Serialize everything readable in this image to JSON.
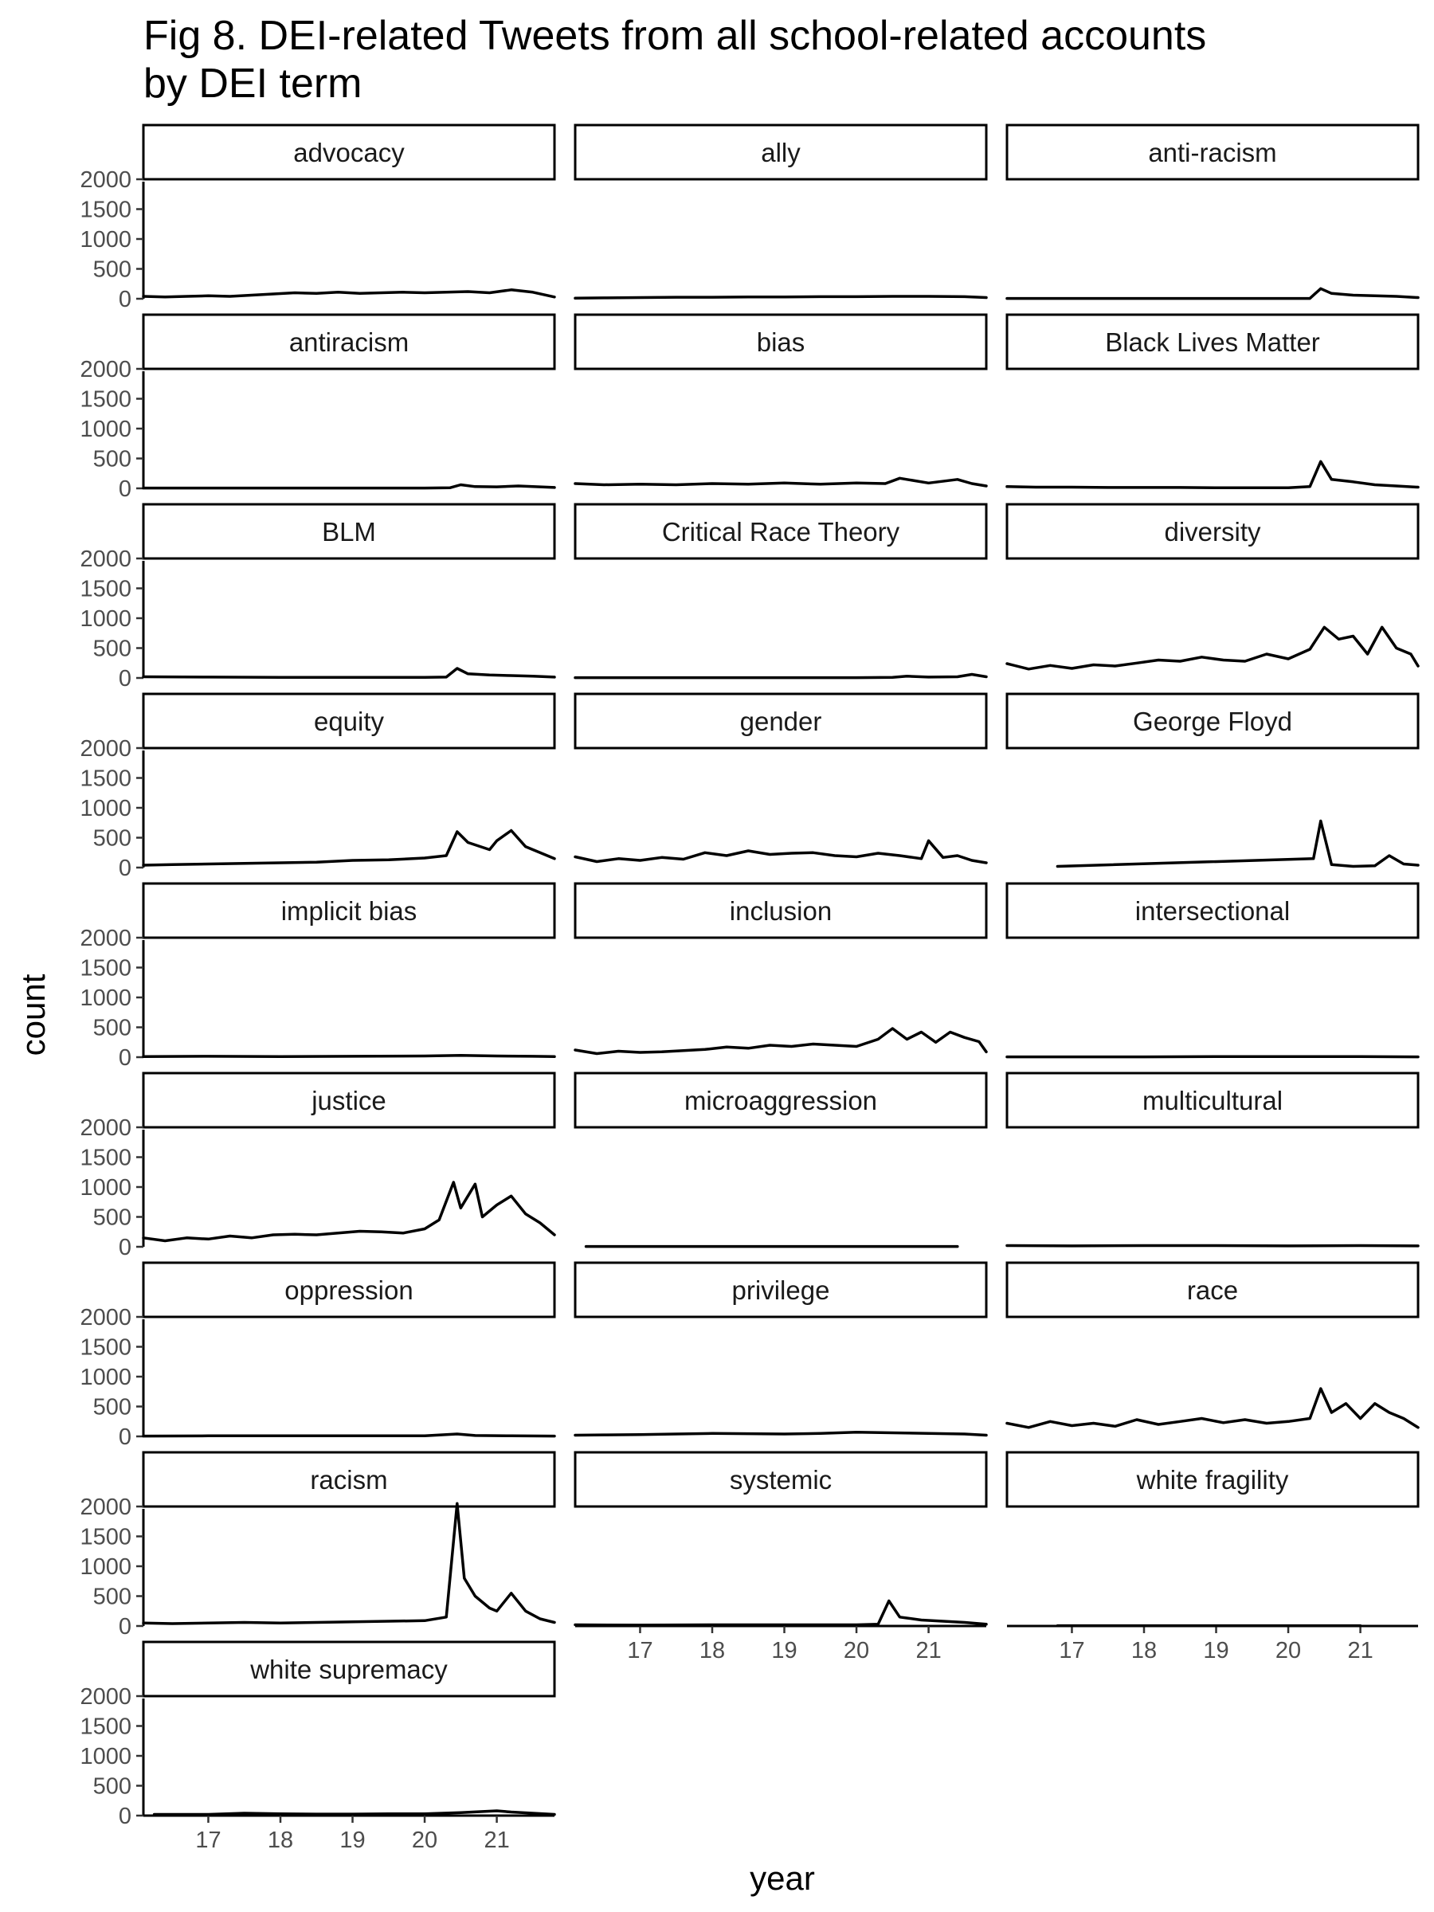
{
  "chart_data": {
    "type": "line",
    "title": "Fig 8. DEI-related Tweets from all school-related accounts by DEI term",
    "title_lines": [
      "Fig 8. DEI-related Tweets from all school-related accounts",
      "by DEI term"
    ],
    "xlabel": "year",
    "ylabel": "count",
    "ylim": [
      0,
      2000
    ],
    "y_ticks": [
      0,
      500,
      1000,
      1500,
      2000
    ],
    "xlim": [
      16.1,
      21.8
    ],
    "x_ticks": [
      17,
      18,
      19,
      20,
      21
    ],
    "grid": false,
    "layout": "facets, 3 columns, shared axes",
    "series_color": "#000000",
    "facets": [
      {
        "term": "advocacy",
        "x": [
          16.1,
          16.4,
          16.7,
          17.0,
          17.3,
          17.6,
          17.9,
          18.2,
          18.5,
          18.8,
          19.1,
          19.4,
          19.7,
          20.0,
          20.3,
          20.6,
          20.9,
          21.2,
          21.5,
          21.8
        ],
        "y": [
          40,
          30,
          40,
          50,
          40,
          60,
          80,
          100,
          90,
          110,
          90,
          100,
          110,
          100,
          110,
          120,
          100,
          150,
          110,
          30
        ]
      },
      {
        "term": "ally",
        "x": [
          16.1,
          16.5,
          17.0,
          17.5,
          18.0,
          18.5,
          19.0,
          19.5,
          20.0,
          20.5,
          21.0,
          21.5,
          21.8
        ],
        "y": [
          10,
          15,
          20,
          25,
          25,
          30,
          30,
          35,
          35,
          40,
          40,
          35,
          20
        ]
      },
      {
        "term": "anti-racism",
        "x": [
          16.1,
          17.0,
          18.0,
          19.0,
          20.0,
          20.3,
          20.45,
          20.6,
          20.9,
          21.2,
          21.5,
          21.8
        ],
        "y": [
          5,
          5,
          5,
          5,
          5,
          5,
          170,
          90,
          60,
          50,
          40,
          20
        ]
      },
      {
        "term": "antiracism",
        "x": [
          16.1,
          17.0,
          18.0,
          19.0,
          20.0,
          20.35,
          20.5,
          20.7,
          21.0,
          21.3,
          21.8
        ],
        "y": [
          5,
          5,
          5,
          5,
          5,
          10,
          60,
          30,
          25,
          40,
          15
        ]
      },
      {
        "term": "bias",
        "x": [
          16.1,
          16.5,
          17.0,
          17.5,
          18.0,
          18.5,
          19.0,
          19.5,
          20.0,
          20.4,
          20.6,
          21.0,
          21.4,
          21.6,
          21.8
        ],
        "y": [
          80,
          60,
          70,
          60,
          80,
          70,
          90,
          70,
          90,
          80,
          170,
          90,
          150,
          80,
          40
        ]
      },
      {
        "term": "Black Lives Matter",
        "x": [
          16.1,
          16.5,
          17.0,
          17.5,
          18.0,
          18.5,
          19.0,
          19.5,
          20.0,
          20.3,
          20.45,
          20.6,
          20.9,
          21.2,
          21.5,
          21.8
        ],
        "y": [
          30,
          20,
          20,
          15,
          15,
          15,
          10,
          10,
          10,
          30,
          450,
          150,
          110,
          60,
          40,
          20
        ]
      },
      {
        "term": "BLM",
        "x": [
          16.1,
          17.0,
          18.0,
          19.0,
          20.0,
          20.3,
          20.45,
          20.6,
          20.9,
          21.2,
          21.5,
          21.8
        ],
        "y": [
          20,
          15,
          10,
          10,
          10,
          15,
          160,
          70,
          50,
          40,
          30,
          15
        ]
      },
      {
        "term": "Critical Race Theory",
        "x": [
          16.1,
          17.0,
          18.0,
          19.0,
          20.0,
          20.5,
          20.7,
          21.0,
          21.4,
          21.6,
          21.8
        ],
        "y": [
          5,
          5,
          5,
          5,
          5,
          10,
          30,
          15,
          20,
          60,
          20
        ]
      },
      {
        "term": "diversity",
        "x": [
          16.1,
          16.4,
          16.7,
          17.0,
          17.3,
          17.6,
          17.9,
          18.2,
          18.5,
          18.8,
          19.1,
          19.4,
          19.7,
          20.0,
          20.3,
          20.5,
          20.7,
          20.9,
          21.1,
          21.3,
          21.5,
          21.7,
          21.8
        ],
        "y": [
          240,
          150,
          210,
          160,
          220,
          200,
          250,
          300,
          280,
          350,
          300,
          280,
          400,
          320,
          480,
          850,
          650,
          700,
          400,
          850,
          500,
          400,
          200
        ]
      },
      {
        "term": "equity",
        "x": [
          16.1,
          16.5,
          17.0,
          17.5,
          18.0,
          18.5,
          19.0,
          19.5,
          20.0,
          20.3,
          20.45,
          20.6,
          20.9,
          21.0,
          21.2,
          21.4,
          21.6,
          21.8
        ],
        "y": [
          40,
          50,
          60,
          70,
          80,
          90,
          120,
          130,
          160,
          200,
          600,
          420,
          300,
          450,
          620,
          350,
          250,
          150
        ]
      },
      {
        "term": "gender",
        "x": [
          16.1,
          16.4,
          16.7,
          17.0,
          17.3,
          17.6,
          17.9,
          18.2,
          18.5,
          18.8,
          19.1,
          19.4,
          19.7,
          20.0,
          20.3,
          20.6,
          20.9,
          21.0,
          21.2,
          21.4,
          21.6,
          21.8
        ],
        "y": [
          180,
          100,
          150,
          120,
          170,
          140,
          250,
          200,
          280,
          220,
          240,
          250,
          200,
          180,
          240,
          200,
          150,
          450,
          170,
          200,
          120,
          80
        ]
      },
      {
        "term": "George Floyd",
        "x": [
          16.8,
          20.35,
          20.45,
          20.6,
          20.9,
          21.2,
          21.4,
          21.6,
          21.8
        ],
        "y": [
          20,
          150,
          780,
          50,
          20,
          30,
          200,
          60,
          40
        ]
      },
      {
        "term": "implicit bias",
        "x": [
          16.1,
          17.0,
          18.0,
          19.0,
          20.0,
          20.5,
          21.0,
          21.5,
          21.8
        ],
        "y": [
          10,
          15,
          10,
          15,
          20,
          30,
          20,
          15,
          10
        ]
      },
      {
        "term": "inclusion",
        "x": [
          16.1,
          16.4,
          16.7,
          17.0,
          17.3,
          17.6,
          17.9,
          18.2,
          18.5,
          18.8,
          19.1,
          19.4,
          19.7,
          20.0,
          20.3,
          20.5,
          20.7,
          20.9,
          21.1,
          21.3,
          21.5,
          21.7,
          21.8
        ],
        "y": [
          120,
          60,
          100,
          80,
          90,
          110,
          130,
          170,
          150,
          200,
          180,
          220,
          200,
          180,
          300,
          480,
          300,
          420,
          250,
          420,
          330,
          260,
          90
        ]
      },
      {
        "term": "intersectional",
        "x": [
          16.1,
          17.0,
          18.0,
          19.0,
          20.0,
          21.0,
          21.8
        ],
        "y": [
          5,
          5,
          5,
          10,
          10,
          10,
          5
        ]
      },
      {
        "term": "justice",
        "x": [
          16.1,
          16.4,
          16.7,
          17.0,
          17.3,
          17.6,
          17.9,
          18.2,
          18.5,
          18.8,
          19.1,
          19.4,
          19.7,
          20.0,
          20.2,
          20.4,
          20.5,
          20.7,
          20.8,
          21.0,
          21.2,
          21.4,
          21.6,
          21.8
        ],
        "y": [
          150,
          100,
          150,
          130,
          180,
          150,
          200,
          210,
          200,
          230,
          260,
          250,
          230,
          300,
          450,
          1080,
          650,
          1050,
          500,
          700,
          850,
          550,
          400,
          200
        ]
      },
      {
        "term": "microaggression",
        "x": [
          16.25,
          21.4
        ],
        "y": [
          5,
          5
        ]
      },
      {
        "term": "multicultural",
        "x": [
          16.1,
          17.0,
          18.0,
          19.0,
          20.0,
          21.0,
          21.8
        ],
        "y": [
          20,
          15,
          20,
          20,
          15,
          20,
          15
        ]
      },
      {
        "term": "oppression",
        "x": [
          16.1,
          17.0,
          18.0,
          19.0,
          20.0,
          20.45,
          20.7,
          21.2,
          21.8
        ],
        "y": [
          5,
          10,
          10,
          10,
          10,
          40,
          15,
          10,
          5
        ]
      },
      {
        "term": "privilege",
        "x": [
          16.1,
          16.5,
          17.0,
          17.5,
          18.0,
          18.5,
          19.0,
          19.5,
          20.0,
          20.5,
          21.0,
          21.5,
          21.8
        ],
        "y": [
          20,
          25,
          30,
          40,
          50,
          45,
          40,
          50,
          70,
          60,
          50,
          40,
          20
        ]
      },
      {
        "term": "race",
        "x": [
          16.1,
          16.4,
          16.7,
          17.0,
          17.3,
          17.6,
          17.9,
          18.2,
          18.5,
          18.8,
          19.1,
          19.4,
          19.7,
          20.0,
          20.3,
          20.45,
          20.6,
          20.8,
          21.0,
          21.2,
          21.4,
          21.6,
          21.8
        ],
        "y": [
          220,
          150,
          250,
          180,
          220,
          170,
          280,
          200,
          250,
          300,
          230,
          280,
          220,
          250,
          300,
          800,
          400,
          550,
          300,
          550,
          400,
          300,
          150
        ]
      },
      {
        "term": "racism",
        "x": [
          16.1,
          16.5,
          17.0,
          17.5,
          18.0,
          18.5,
          19.0,
          19.5,
          20.0,
          20.3,
          20.45,
          20.55,
          20.7,
          20.9,
          21.0,
          21.2,
          21.4,
          21.6,
          21.8
        ],
        "y": [
          50,
          40,
          50,
          60,
          50,
          60,
          70,
          80,
          90,
          150,
          2050,
          800,
          500,
          300,
          250,
          550,
          250,
          120,
          60
        ]
      },
      {
        "term": "systemic",
        "x": [
          16.1,
          17.0,
          18.0,
          19.0,
          20.0,
          20.3,
          20.45,
          20.6,
          20.9,
          21.2,
          21.5,
          21.8
        ],
        "y": [
          20,
          15,
          20,
          20,
          20,
          30,
          420,
          150,
          100,
          80,
          60,
          30
        ]
      },
      {
        "term": "white fragility",
        "x": [
          16.8,
          21.0
        ],
        "y": [
          5,
          5
        ]
      },
      {
        "term": "white supremacy",
        "x": [
          16.25,
          16.7,
          17.0,
          17.5,
          18.0,
          18.5,
          19.0,
          19.5,
          20.0,
          20.5,
          21.0,
          21.2,
          21.5,
          21.8
        ],
        "y": [
          20,
          20,
          20,
          40,
          30,
          25,
          25,
          30,
          30,
          50,
          80,
          60,
          40,
          20
        ]
      }
    ]
  }
}
